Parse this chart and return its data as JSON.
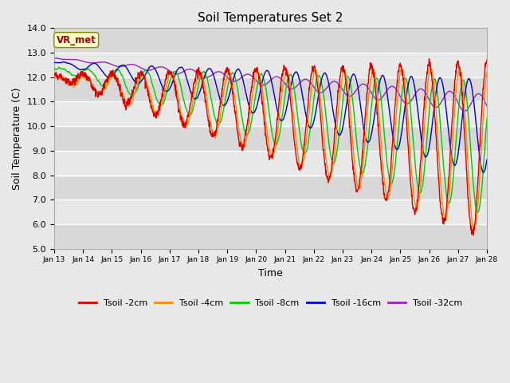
{
  "title": "Soil Temperatures Set 2",
  "xlabel": "Time",
  "ylabel": "Soil Temperature (C)",
  "ylim": [
    5.0,
    14.0
  ],
  "yticks": [
    5.0,
    6.0,
    7.0,
    8.0,
    9.0,
    10.0,
    11.0,
    12.0,
    13.0,
    14.0
  ],
  "n_days": 15,
  "n_points": 1440,
  "series_colors": {
    "Tsoil -2cm": "#dd0000",
    "Tsoil -4cm": "#ff8800",
    "Tsoil -8cm": "#00cc00",
    "Tsoil -16cm": "#0000cc",
    "Tsoil -32cm": "#9922bb"
  },
  "background_color": "#e8e8e8",
  "plot_bg_color": "#e8e8e8",
  "grid_color": "#ffffff",
  "annotation_text": "VR_met",
  "annotation_color": "#aa0000",
  "annotation_bg": "#ffffcc",
  "annotation_edge": "#888800"
}
